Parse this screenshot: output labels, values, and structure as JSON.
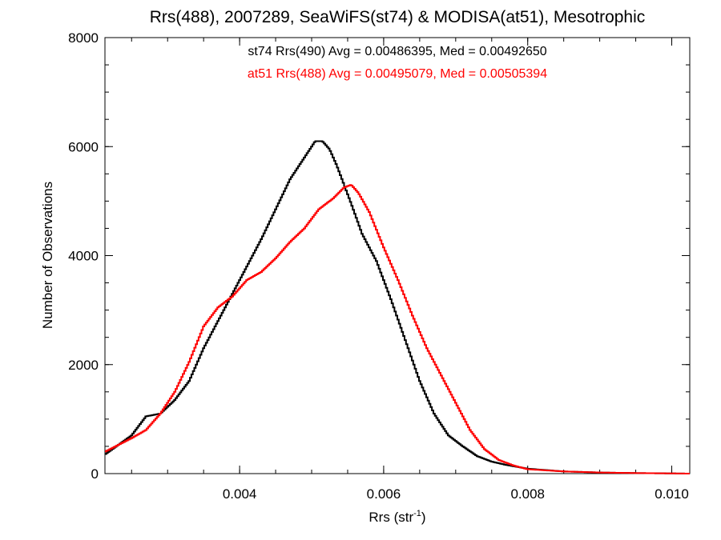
{
  "chart_data": {
    "type": "line",
    "title": "Rrs(488), 2007289, SeaWiFS(st74) & MODISA(at51), Mesotrophic",
    "xlabel_main": "Rrs (str",
    "xlabel_sup": "-1",
    "xlabel_close": ")",
    "ylabel": "Number of Observations",
    "xlim": [
      0.00213,
      0.01025
    ],
    "ylim": [
      0,
      8000
    ],
    "xticks": [
      0.004,
      0.006,
      0.008,
      0.01
    ],
    "xtick_labels": [
      "0.004",
      "0.006",
      "0.008",
      "0.010"
    ],
    "yticks": [
      0,
      2000,
      4000,
      6000,
      8000
    ],
    "ytick_labels": [
      "0",
      "2000",
      "4000",
      "6000",
      "8000"
    ],
    "grid": false,
    "step_style": "histogram",
    "annotations": [
      {
        "text": "st74 Rrs(490) Avg = 0.00486395, Med = 0.00492650",
        "color": "#000000"
      },
      {
        "text": "at51 Rrs(488) Avg = 0.00495079, Med = 0.00505394",
        "color": "#ff0000"
      }
    ],
    "series": [
      {
        "color": "#000000",
        "x": [
          0.00213,
          0.0025,
          0.0027,
          0.0029,
          0.0031,
          0.0033,
          0.0035,
          0.0037,
          0.0039,
          0.0041,
          0.0043,
          0.0045,
          0.0047,
          0.0049,
          0.00505,
          0.00515,
          0.00525,
          0.00535,
          0.00545,
          0.00555,
          0.0057,
          0.0059,
          0.0061,
          0.0063,
          0.0065,
          0.0067,
          0.0069,
          0.0071,
          0.0073,
          0.0075,
          0.0077,
          0.008,
          0.0085,
          0.009,
          0.0095,
          0.01025
        ],
        "y": [
          350,
          700,
          1050,
          1100,
          1350,
          1700,
          2300,
          2800,
          3300,
          3800,
          4300,
          4850,
          5400,
          5800,
          6100,
          6100,
          5950,
          5650,
          5300,
          4950,
          4400,
          3900,
          3200,
          2450,
          1700,
          1100,
          700,
          500,
          320,
          220,
          160,
          90,
          40,
          20,
          10,
          0
        ]
      },
      {
        "color": "#ff0000",
        "x": [
          0.00213,
          0.0025,
          0.0027,
          0.0029,
          0.0031,
          0.0033,
          0.0035,
          0.0037,
          0.0039,
          0.0041,
          0.0043,
          0.0045,
          0.0047,
          0.0049,
          0.0051,
          0.0053,
          0.00545,
          0.00555,
          0.00565,
          0.0058,
          0.006,
          0.0062,
          0.0064,
          0.0066,
          0.0068,
          0.007,
          0.0072,
          0.0074,
          0.0076,
          0.0078,
          0.008,
          0.0085,
          0.009,
          0.0095,
          0.01025
        ],
        "y": [
          400,
          650,
          800,
          1100,
          1500,
          2050,
          2700,
          3050,
          3250,
          3550,
          3700,
          3950,
          4250,
          4500,
          4850,
          5050,
          5250,
          5300,
          5150,
          4800,
          4150,
          3550,
          2900,
          2300,
          1800,
          1300,
          800,
          450,
          250,
          150,
          80,
          40,
          20,
          10,
          0
        ]
      }
    ]
  }
}
